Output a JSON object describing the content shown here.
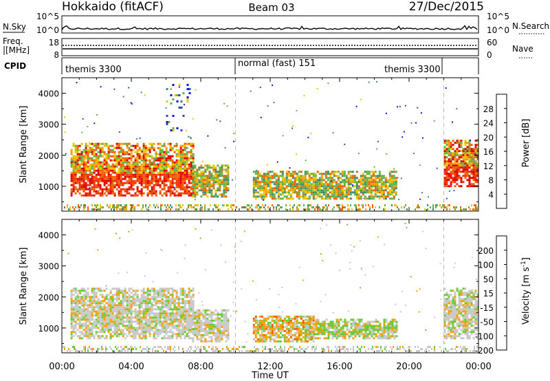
{
  "header": {
    "title_left": "Hokkaido (fitACF)",
    "title_center": "Beam 03",
    "title_right": "27/Dec/2015"
  },
  "top_panels": {
    "nsky_label": "N.Sky",
    "nsky_ticks": [
      "10^5",
      "10^0"
    ],
    "nsearch_label": "N.Search",
    "nsearch_ticks": [
      "10^5",
      "10^0"
    ],
    "freq_label_1": "Freq.",
    "freq_label_2": "[MHz]",
    "freq_ticks": [
      "18",
      "8"
    ],
    "nave_label": "Nave",
    "nave_ticks": [
      "60",
      "0"
    ],
    "cpid_label": "CPID",
    "cpid_segments": [
      "themis 3300",
      "normal (fast) 151",
      "themis 3300"
    ]
  },
  "chart_data": [
    {
      "type": "heatmap",
      "name": "power",
      "ylabel": "Slant Range [km]",
      "yticks": [
        "1000",
        "2000",
        "3000",
        "4000"
      ],
      "ylim": [
        200,
        4500
      ],
      "xlim": [
        0,
        24
      ],
      "colorbar_label": "Power [dB]",
      "colorbar_ticks": [
        "4",
        "8",
        "12",
        "16",
        "20",
        "24",
        "28"
      ],
      "colorbar_colors": [
        "#1010e0",
        "#2a4fa8",
        "#3f8a70",
        "#66b046",
        "#e8c800",
        "#f5a000",
        "#f06000",
        "#e00000"
      ],
      "echo_regions": [
        {
          "t0": 0.5,
          "t1": 7.6,
          "r0": 700,
          "r1": 2400,
          "level": "strong"
        },
        {
          "t0": 7.5,
          "t1": 9.6,
          "r0": 700,
          "r1": 1700,
          "level": "medium"
        },
        {
          "t0": 11.0,
          "t1": 19.3,
          "r0": 600,
          "r1": 1500,
          "level": "medium"
        },
        {
          "t0": 22.0,
          "t1": 24.0,
          "r0": 1000,
          "r1": 2500,
          "level": "strong"
        },
        {
          "t0": 6.0,
          "t1": 7.4,
          "r0": 2800,
          "r1": 4300,
          "level": "weak"
        }
      ]
    },
    {
      "type": "heatmap",
      "name": "velocity",
      "ylabel": "Slant Range [km]",
      "yticks": [
        "1000",
        "2000",
        "3000",
        "4000"
      ],
      "ylim": [
        200,
        4500
      ],
      "xlim": [
        0,
        24
      ],
      "xlabel": "Time UT",
      "xticks": [
        "00:00",
        "04:00",
        "08:00",
        "12:00",
        "16:00",
        "20:00",
        "00:00"
      ],
      "colorbar_label": "Velocity [m s",
      "colorbar_label_sup": "-1",
      "colorbar_label_end": "]",
      "colorbar_ticks": [
        "200",
        "100",
        "50",
        "15",
        "-15",
        "-50",
        "-100",
        "-200"
      ],
      "colorbar_colors": [
        "#1010d0",
        "#2a60a0",
        "#3a9a5a",
        "#66cc33",
        "#c8c8c8",
        "#f5a000",
        "#f06000",
        "#e00000"
      ],
      "echo_regions": [
        {
          "t0": 0.5,
          "t1": 7.6,
          "r0": 700,
          "r1": 2300,
          "level": "ground"
        },
        {
          "t0": 7.5,
          "t1": 9.6,
          "r0": 600,
          "r1": 1600,
          "level": "ground"
        },
        {
          "t0": 11.0,
          "t1": 14.5,
          "r0": 600,
          "r1": 1400,
          "level": "negative"
        },
        {
          "t0": 14.0,
          "t1": 19.3,
          "r0": 700,
          "r1": 1300,
          "level": "mixed"
        },
        {
          "t0": 22.0,
          "t1": 24.0,
          "r0": 700,
          "r1": 2300,
          "level": "ground"
        }
      ]
    }
  ]
}
